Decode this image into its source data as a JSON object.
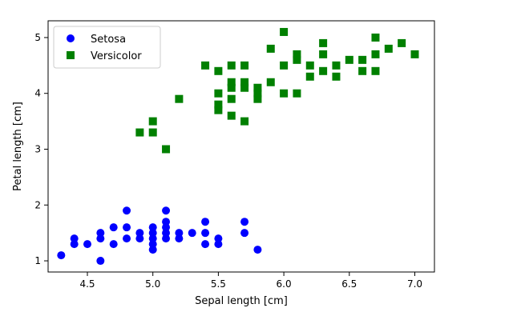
{
  "chart_data": {
    "type": "scatter",
    "title": "",
    "xlabel": "Sepal length [cm]",
    "ylabel": "Petal length [cm]",
    "xlim": [
      4.2,
      7.15
    ],
    "ylim": [
      0.8,
      5.3
    ],
    "xticks": [
      4.5,
      5.0,
      5.5,
      6.0,
      6.5,
      7.0
    ],
    "xtick_labels": [
      "4.5",
      "5.0",
      "5.5",
      "6.0",
      "6.5",
      "7.0"
    ],
    "yticks": [
      1,
      2,
      3,
      4,
      5
    ],
    "ytick_labels": [
      "1",
      "2",
      "3",
      "4",
      "5"
    ],
    "grid": false,
    "legend": {
      "position": "top-left"
    },
    "series": [
      {
        "name": "Setosa",
        "marker": "circle",
        "color": "#0000ff",
        "points": [
          [
            4.3,
            1.1
          ],
          [
            4.4,
            1.3
          ],
          [
            4.4,
            1.4
          ],
          [
            4.5,
            1.3
          ],
          [
            4.6,
            1.0
          ],
          [
            4.6,
            1.4
          ],
          [
            4.6,
            1.5
          ],
          [
            4.7,
            1.3
          ],
          [
            4.7,
            1.6
          ],
          [
            4.8,
            1.4
          ],
          [
            4.8,
            1.6
          ],
          [
            4.8,
            1.9
          ],
          [
            4.9,
            1.4
          ],
          [
            4.9,
            1.5
          ],
          [
            5.0,
            1.2
          ],
          [
            5.0,
            1.3
          ],
          [
            5.0,
            1.4
          ],
          [
            5.0,
            1.5
          ],
          [
            5.0,
            1.6
          ],
          [
            5.1,
            1.4
          ],
          [
            5.1,
            1.5
          ],
          [
            5.1,
            1.6
          ],
          [
            5.1,
            1.7
          ],
          [
            5.1,
            1.9
          ],
          [
            5.2,
            1.4
          ],
          [
            5.2,
            1.5
          ],
          [
            5.3,
            1.5
          ],
          [
            5.4,
            1.3
          ],
          [
            5.4,
            1.5
          ],
          [
            5.4,
            1.7
          ],
          [
            5.5,
            1.3
          ],
          [
            5.5,
            1.4
          ],
          [
            5.7,
            1.5
          ],
          [
            5.7,
            1.7
          ],
          [
            5.8,
            1.2
          ]
        ]
      },
      {
        "name": "Versicolor",
        "marker": "square",
        "color": "#008000",
        "points": [
          [
            4.9,
            3.3
          ],
          [
            5.0,
            3.3
          ],
          [
            5.0,
            3.5
          ],
          [
            5.1,
            3.0
          ],
          [
            5.2,
            3.9
          ],
          [
            5.4,
            4.5
          ],
          [
            5.5,
            3.7
          ],
          [
            5.5,
            3.8
          ],
          [
            5.5,
            4.0
          ],
          [
            5.5,
            4.4
          ],
          [
            5.6,
            3.6
          ],
          [
            5.6,
            3.9
          ],
          [
            5.6,
            4.1
          ],
          [
            5.6,
            4.2
          ],
          [
            5.6,
            4.5
          ],
          [
            5.7,
            3.5
          ],
          [
            5.7,
            4.1
          ],
          [
            5.7,
            4.2
          ],
          [
            5.7,
            4.5
          ],
          [
            5.8,
            3.9
          ],
          [
            5.8,
            4.0
          ],
          [
            5.8,
            4.1
          ],
          [
            5.9,
            4.2
          ],
          [
            5.9,
            4.8
          ],
          [
            6.0,
            4.0
          ],
          [
            6.0,
            4.5
          ],
          [
            6.0,
            5.1
          ],
          [
            6.1,
            4.0
          ],
          [
            6.1,
            4.6
          ],
          [
            6.1,
            4.7
          ],
          [
            6.2,
            4.3
          ],
          [
            6.2,
            4.5
          ],
          [
            6.3,
            4.4
          ],
          [
            6.3,
            4.7
          ],
          [
            6.3,
            4.9
          ],
          [
            6.4,
            4.3
          ],
          [
            6.4,
            4.5
          ],
          [
            6.5,
            4.6
          ],
          [
            6.6,
            4.4
          ],
          [
            6.6,
            4.6
          ],
          [
            6.7,
            4.4
          ],
          [
            6.7,
            4.7
          ],
          [
            6.7,
            5.0
          ],
          [
            6.8,
            4.8
          ],
          [
            6.9,
            4.9
          ],
          [
            7.0,
            4.7
          ]
        ]
      }
    ]
  }
}
